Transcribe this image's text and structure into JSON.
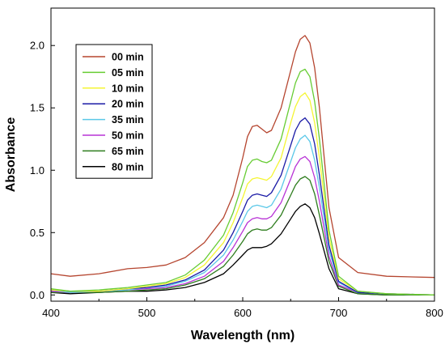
{
  "chart_data": {
    "type": "line",
    "title": "",
    "xlabel": "Wavelength (nm)",
    "ylabel": "Absorbance",
    "xlim": [
      400,
      800
    ],
    "ylim": [
      -0.05,
      2.3
    ],
    "xticks": [
      400,
      500,
      600,
      700,
      800
    ],
    "yticks": [
      0.0,
      0.5,
      1.0,
      1.5,
      2.0
    ],
    "xtick_labels": [
      "400",
      "500",
      "600",
      "700",
      "800"
    ],
    "ytick_labels": [
      "0.0",
      "0.5",
      "1.0",
      "1.5",
      "2.0"
    ],
    "grid": false,
    "legend_position": "top-left",
    "x": [
      400,
      420,
      450,
      480,
      500,
      520,
      540,
      560,
      580,
      590,
      600,
      605,
      610,
      615,
      620,
      625,
      630,
      640,
      650,
      655,
      660,
      665,
      670,
      675,
      680,
      690,
      700,
      720,
      750,
      800
    ],
    "series": [
      {
        "name": "00 min",
        "color": "#b5452f",
        "values": [
          0.17,
          0.15,
          0.17,
          0.21,
          0.22,
          0.24,
          0.3,
          0.42,
          0.62,
          0.8,
          1.1,
          1.27,
          1.35,
          1.36,
          1.33,
          1.3,
          1.32,
          1.5,
          1.8,
          1.95,
          2.05,
          2.08,
          2.02,
          1.82,
          1.5,
          0.7,
          0.3,
          0.18,
          0.15,
          0.14
        ]
      },
      {
        "name": "05 min",
        "color": "#66cc33",
        "values": [
          0.05,
          0.03,
          0.04,
          0.06,
          0.08,
          0.1,
          0.16,
          0.28,
          0.48,
          0.66,
          0.9,
          1.03,
          1.08,
          1.09,
          1.07,
          1.06,
          1.08,
          1.25,
          1.55,
          1.7,
          1.79,
          1.81,
          1.75,
          1.55,
          1.25,
          0.52,
          0.15,
          0.03,
          0.01,
          0.0
        ]
      },
      {
        "name": "10 min",
        "color": "#f5f533",
        "values": [
          0.04,
          0.03,
          0.03,
          0.05,
          0.07,
          0.09,
          0.14,
          0.24,
          0.42,
          0.58,
          0.78,
          0.89,
          0.93,
          0.94,
          0.93,
          0.92,
          0.95,
          1.1,
          1.38,
          1.51,
          1.59,
          1.62,
          1.56,
          1.38,
          1.1,
          0.46,
          0.13,
          0.03,
          0.01,
          0.0
        ]
      },
      {
        "name": "20 min",
        "color": "#1a1aa6",
        "values": [
          0.04,
          0.03,
          0.03,
          0.05,
          0.06,
          0.08,
          0.12,
          0.2,
          0.36,
          0.5,
          0.67,
          0.76,
          0.8,
          0.81,
          0.8,
          0.79,
          0.82,
          0.96,
          1.2,
          1.32,
          1.39,
          1.42,
          1.37,
          1.21,
          0.96,
          0.4,
          0.11,
          0.02,
          0.01,
          0.0
        ]
      },
      {
        "name": "35 min",
        "color": "#5bc8e8",
        "values": [
          0.04,
          0.02,
          0.03,
          0.04,
          0.06,
          0.07,
          0.11,
          0.18,
          0.32,
          0.44,
          0.59,
          0.67,
          0.71,
          0.72,
          0.71,
          0.7,
          0.72,
          0.85,
          1.07,
          1.18,
          1.25,
          1.28,
          1.23,
          1.08,
          0.86,
          0.36,
          0.1,
          0.02,
          0.01,
          0.0
        ]
      },
      {
        "name": "50 min",
        "color": "#b833d6",
        "values": [
          0.03,
          0.02,
          0.03,
          0.04,
          0.05,
          0.06,
          0.09,
          0.15,
          0.27,
          0.38,
          0.51,
          0.58,
          0.61,
          0.62,
          0.61,
          0.61,
          0.63,
          0.74,
          0.93,
          1.03,
          1.09,
          1.11,
          1.07,
          0.94,
          0.75,
          0.31,
          0.08,
          0.02,
          0.01,
          0.0
        ]
      },
      {
        "name": "65 min",
        "color": "#2e7d1e",
        "values": [
          0.02,
          0.02,
          0.02,
          0.03,
          0.04,
          0.05,
          0.08,
          0.13,
          0.23,
          0.32,
          0.43,
          0.49,
          0.52,
          0.53,
          0.52,
          0.52,
          0.54,
          0.64,
          0.8,
          0.88,
          0.93,
          0.95,
          0.92,
          0.81,
          0.64,
          0.27,
          0.07,
          0.01,
          0.0,
          0.0
        ]
      },
      {
        "name": "80 min",
        "color": "#000000",
        "values": [
          0.02,
          0.01,
          0.02,
          0.03,
          0.03,
          0.04,
          0.06,
          0.1,
          0.17,
          0.24,
          0.32,
          0.36,
          0.38,
          0.38,
          0.38,
          0.39,
          0.41,
          0.49,
          0.61,
          0.67,
          0.71,
          0.73,
          0.7,
          0.62,
          0.49,
          0.21,
          0.05,
          0.01,
          0.0,
          0.0
        ]
      }
    ]
  }
}
